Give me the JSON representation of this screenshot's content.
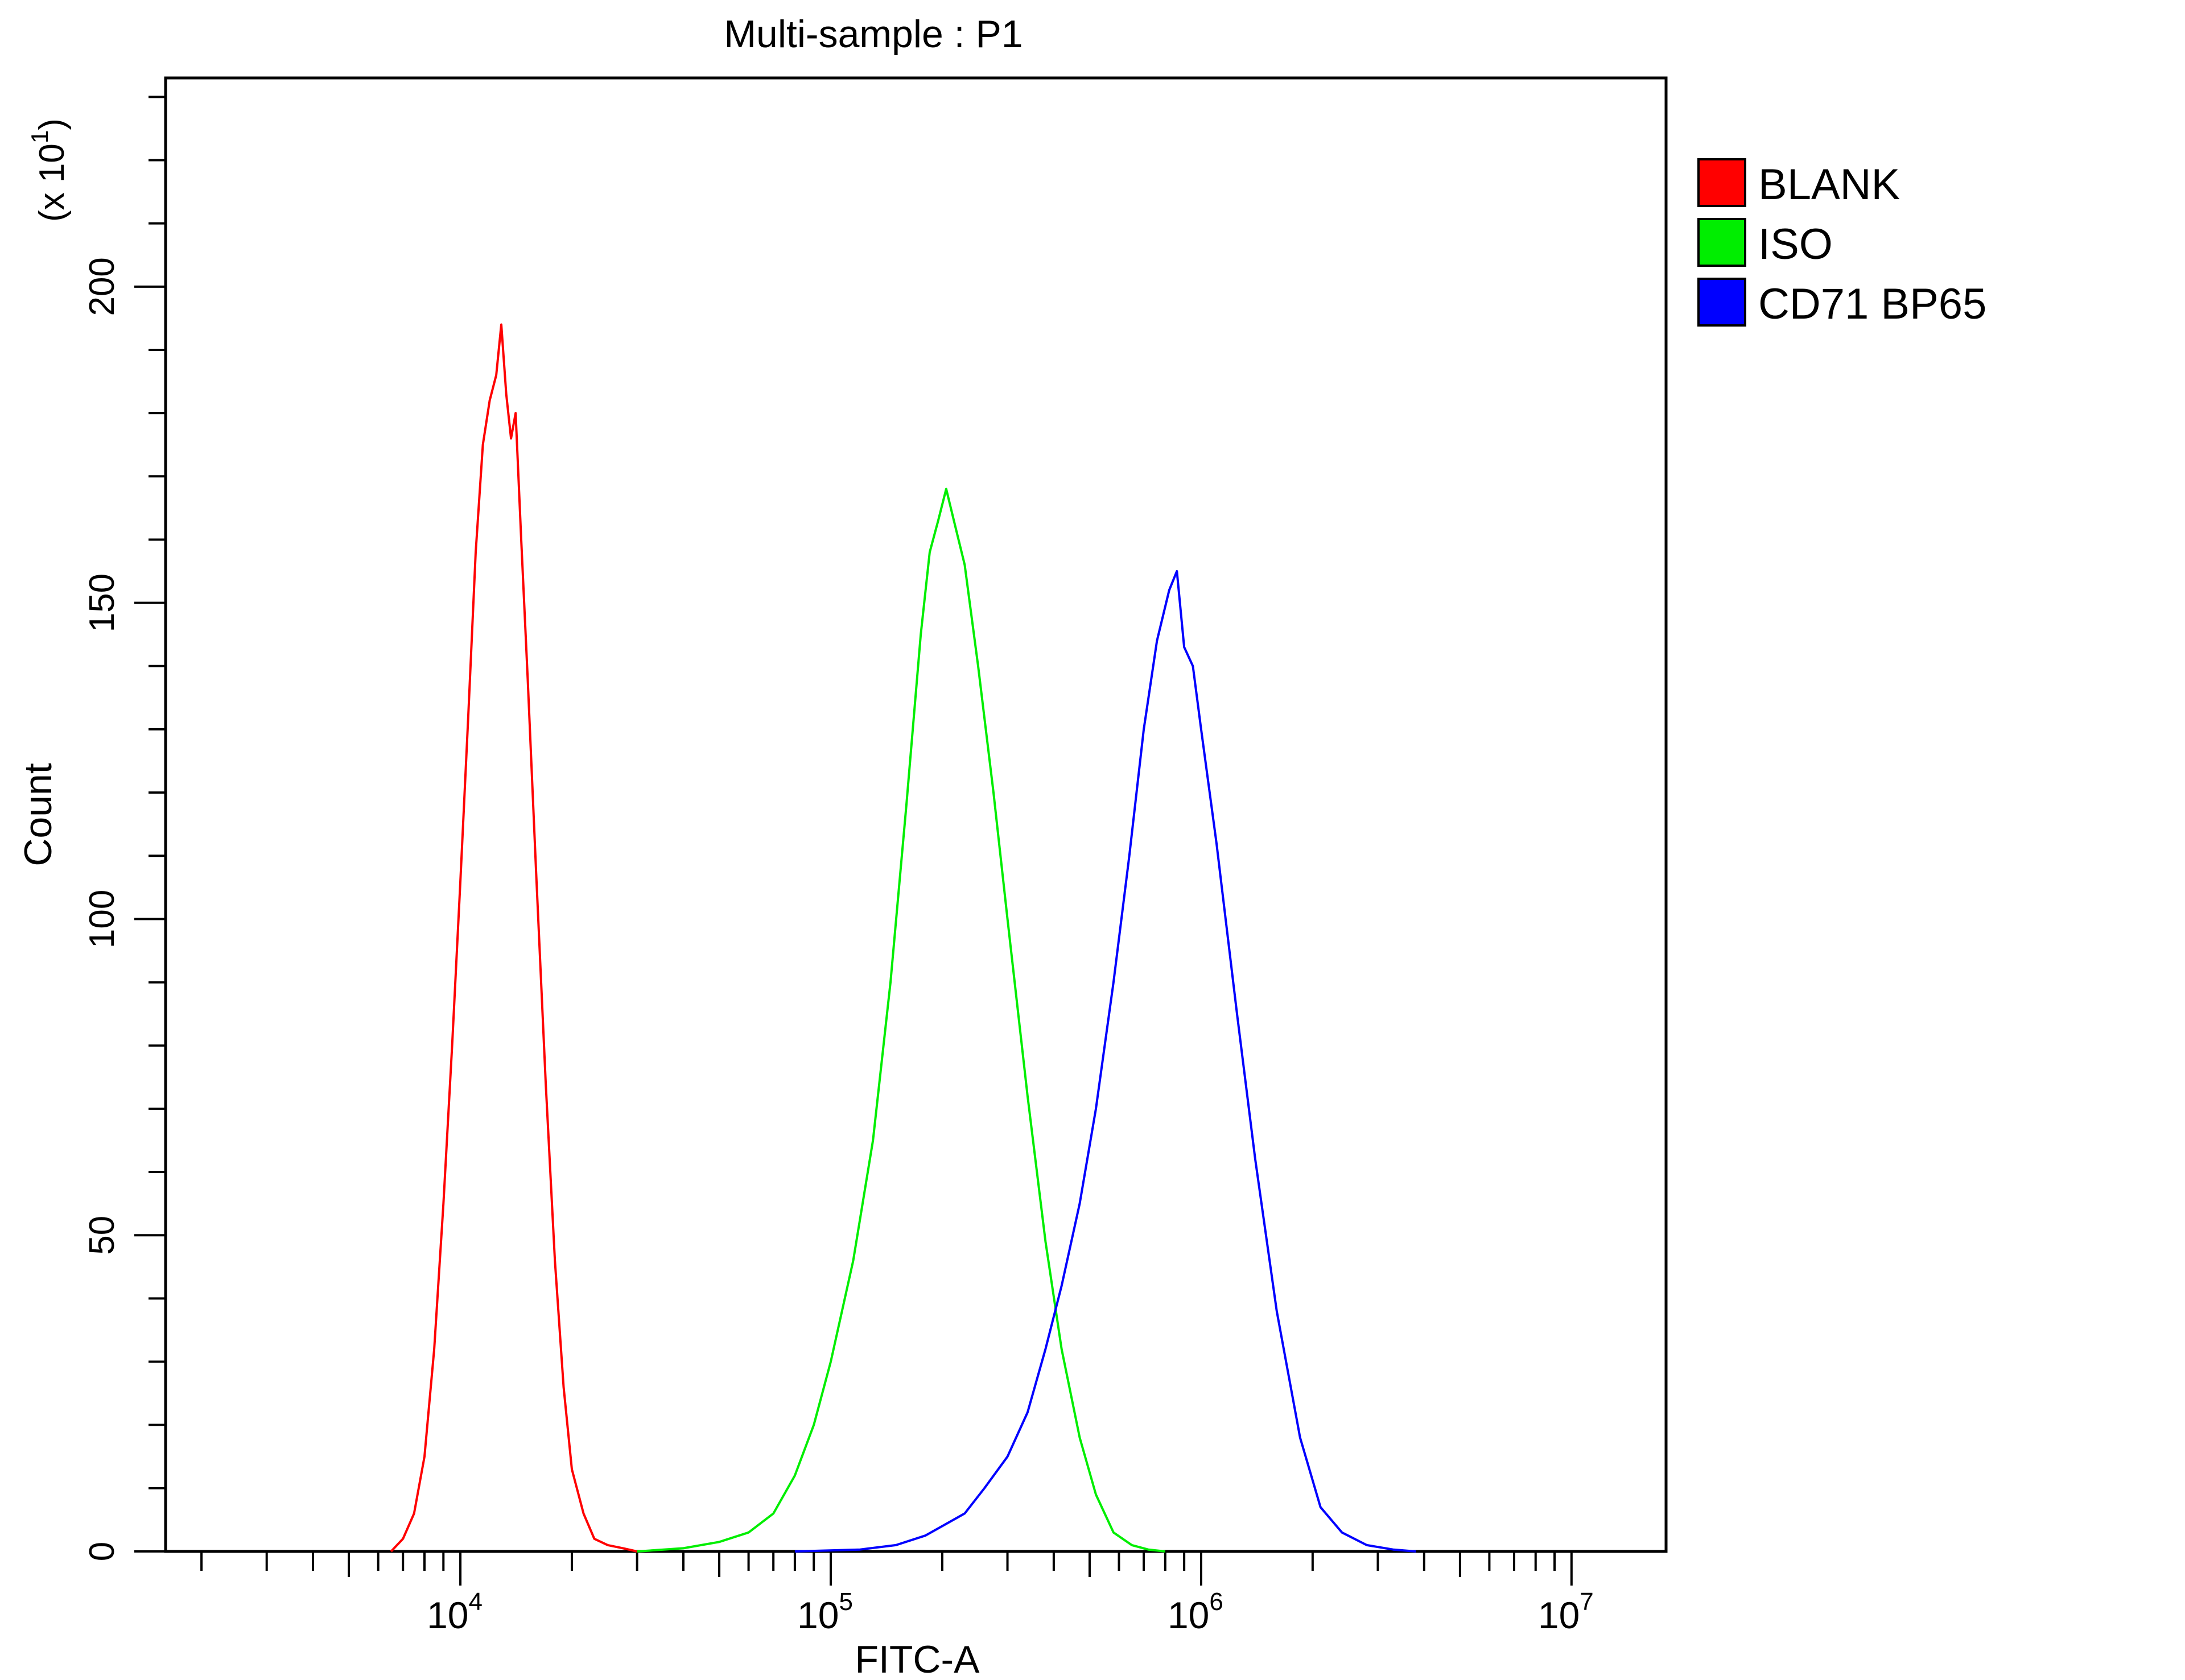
{
  "chart_data": {
    "type": "line",
    "title": "Multi-sample : P1",
    "xlabel": "FITC-A",
    "ylabel": "Count",
    "y_multiplier_label": "(x 10",
    "y_multiplier_exp": "1",
    "y_multiplier_close": ")",
    "x_scale": "log",
    "xlim": [
      1600,
      18000000
    ],
    "ylim": [
      0,
      233
    ],
    "x_ticks": [
      {
        "base": "10",
        "exp": "4",
        "value": 10000
      },
      {
        "base": "10",
        "exp": "5",
        "value": 100000
      },
      {
        "base": "10",
        "exp": "6",
        "value": 1000000
      },
      {
        "base": "10",
        "exp": "7",
        "value": 10000000
      }
    ],
    "y_ticks": [
      "0",
      "50",
      "100",
      "150",
      "200"
    ],
    "y_tick_values": [
      0,
      50,
      100,
      150,
      200
    ],
    "y_minor_step": 10,
    "grid": false,
    "legend_position": "right",
    "series": [
      {
        "name": "BLANK",
        "color": "#ff0000",
        "x": [
          6500,
          7000,
          7500,
          8000,
          8500,
          9000,
          9500,
          10000,
          10500,
          11000,
          11500,
          12000,
          12500,
          12900,
          13300,
          13700,
          14100,
          14600,
          15200,
          16000,
          17000,
          18000,
          19000,
          20000,
          21500,
          23000,
          25000,
          27500,
          30000
        ],
        "y": [
          0,
          2,
          6,
          15,
          32,
          55,
          80,
          106,
          132,
          158,
          175,
          182,
          186,
          194,
          183,
          176,
          180,
          160,
          138,
          108,
          74,
          46,
          26,
          13,
          6,
          2,
          1,
          0.5,
          0
        ]
      },
      {
        "name": "ISO",
        "color": "#00ee00",
        "x": [
          30000,
          40000,
          50000,
          60000,
          70000,
          80000,
          90000,
          100000,
          115000,
          130000,
          145000,
          160000,
          175000,
          185000,
          195000,
          205000,
          215000,
          230000,
          250000,
          275000,
          300000,
          340000,
          380000,
          420000,
          470000,
          520000,
          580000,
          650000,
          720000,
          800000
        ],
        "y": [
          0,
          0.5,
          1.5,
          3,
          6,
          12,
          20,
          30,
          46,
          65,
          90,
          118,
          145,
          158,
          163,
          168,
          163,
          156,
          140,
          120,
          100,
          72,
          49,
          32,
          18,
          9,
          3,
          1,
          0.3,
          0
        ]
      },
      {
        "name": "CD71 BP65",
        "color": "#0000ff",
        "x": [
          80000,
          120000,
          150000,
          180000,
          200000,
          230000,
          260000,
          300000,
          340000,
          380000,
          420000,
          470000,
          520000,
          580000,
          640000,
          700000,
          760000,
          820000,
          860000,
          900000,
          950000,
          1000000,
          1100000,
          1250000,
          1400000,
          1600000,
          1850000,
          2100000,
          2400000,
          2800000,
          3300000,
          3800000
        ],
        "y": [
          0,
          0.3,
          1,
          2.5,
          4,
          6,
          10,
          15,
          22,
          32,
          42,
          55,
          70,
          90,
          110,
          130,
          144,
          152,
          155,
          143,
          140,
          130,
          112,
          85,
          62,
          38,
          18,
          7,
          3,
          1,
          0.3,
          0
        ]
      }
    ]
  }
}
